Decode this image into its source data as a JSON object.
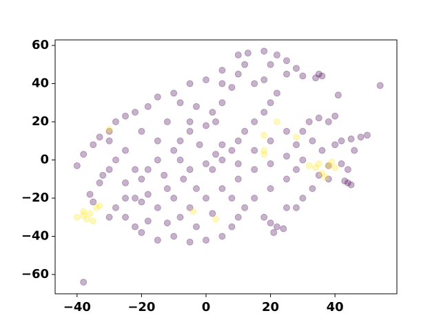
{
  "chart_data": {
    "type": "scatter",
    "opacity": 0.3,
    "xlim": [
      -46.8,
      59.2
    ],
    "ylim": [
      -70.1,
      62.9
    ],
    "xticks": [
      {
        "value": -40,
        "label": "−40"
      },
      {
        "value": -20,
        "label": "−20"
      },
      0,
      20,
      40
    ],
    "yticks": [
      {
        "value": -60,
        "label": "−60"
      },
      {
        "value": -40,
        "label": "−40"
      },
      {
        "value": -20,
        "label": "−20"
      },
      0,
      20,
      40,
      60
    ],
    "series": [
      {
        "color": "#440154",
        "x": [
          -38,
          54,
          -40,
          -38,
          -35,
          -33,
          -30,
          -28,
          -25,
          -22,
          -18,
          -15,
          -10,
          -5,
          0,
          5,
          10,
          13,
          18,
          22,
          25,
          28,
          30,
          35,
          36,
          34,
          41,
          -36,
          -33,
          -30,
          -28,
          -25,
          -22,
          -20,
          -15,
          -10,
          -5,
          0,
          5,
          8,
          10,
          -20,
          -22,
          -18,
          -25,
          -15,
          -12,
          -20,
          -18,
          -15,
          -10,
          -8,
          -5,
          0,
          2,
          -3,
          -8,
          -12,
          -25,
          -28,
          -32,
          -35,
          -30,
          -5,
          0,
          2,
          5,
          8,
          10,
          12,
          15,
          18,
          20,
          22,
          15,
          10,
          12,
          20,
          25,
          18,
          8,
          5,
          3,
          -2,
          -7,
          -10,
          -5,
          0,
          5,
          10,
          15,
          20,
          25,
          28,
          30,
          32,
          35,
          38,
          40,
          33,
          30,
          28,
          25,
          20,
          15,
          12,
          8,
          18,
          20,
          22,
          24,
          21,
          25,
          30,
          33,
          28,
          -12,
          -8,
          -3,
          2,
          -18,
          -25,
          -30,
          -20,
          -15,
          -5,
          5,
          10,
          15,
          20,
          25,
          44,
          45,
          43,
          40,
          42,
          45,
          48,
          50,
          46,
          38,
          35,
          38,
          44,
          42,
          36,
          5,
          -3,
          -13,
          -22,
          -8,
          3
        ],
        "y": [
          -64,
          39,
          -3,
          3,
          8,
          12,
          15,
          20,
          23,
          25,
          28,
          33,
          35,
          40,
          42,
          47,
          55,
          56,
          57,
          55,
          52,
          48,
          44,
          45,
          44,
          43,
          34,
          -18,
          -12,
          -5,
          -25,
          -30,
          -35,
          -38,
          -42,
          -40,
          -43,
          -42,
          -40,
          -35,
          -30,
          -22,
          -20,
          -18,
          -20,
          -25,
          -15,
          -10,
          -5,
          0,
          5,
          10,
          15,
          18,
          25,
          28,
          30,
          20,
          5,
          0,
          -8,
          -22,
          -30,
          -5,
          -2,
          -5,
          0,
          5,
          10,
          15,
          20,
          25,
          30,
          35,
          40,
          45,
          50,
          50,
          45,
          42,
          38,
          30,
          20,
          8,
          -10,
          -20,
          -25,
          -20,
          -15,
          -10,
          -5,
          -2,
          2,
          8,
          15,
          20,
          22,
          20,
          23,
          10,
          0,
          -5,
          -10,
          -15,
          -20,
          -25,
          -20,
          -30,
          -33,
          -35,
          -36,
          -38,
          -25,
          -20,
          -15,
          -25,
          -33,
          -30,
          -35,
          -28,
          -32,
          -12,
          10,
          15,
          10,
          20,
          8,
          -2,
          5,
          10,
          15,
          -12,
          -13,
          -11,
          8,
          10,
          11,
          12,
          13,
          5,
          -3,
          -8,
          -10,
          -5,
          -2,
          5,
          40,
          -15,
          -8,
          -5,
          0,
          3
        ]
      },
      {
        "color": "#fde725",
        "x": [
          -40,
          -38,
          -37,
          -36,
          -35,
          -38,
          -34,
          -33,
          -30,
          18,
          18,
          18,
          22,
          28,
          32,
          34,
          35,
          36,
          37,
          38,
          40,
          3,
          -4,
          39
        ],
        "y": [
          -30,
          -29,
          -31,
          -28,
          -32,
          -27,
          -25,
          -24,
          16,
          13,
          5,
          3,
          20,
          12,
          -3,
          -4,
          -2,
          -7,
          -9,
          -3,
          -4,
          -31,
          -27,
          -1
        ]
      }
    ]
  }
}
